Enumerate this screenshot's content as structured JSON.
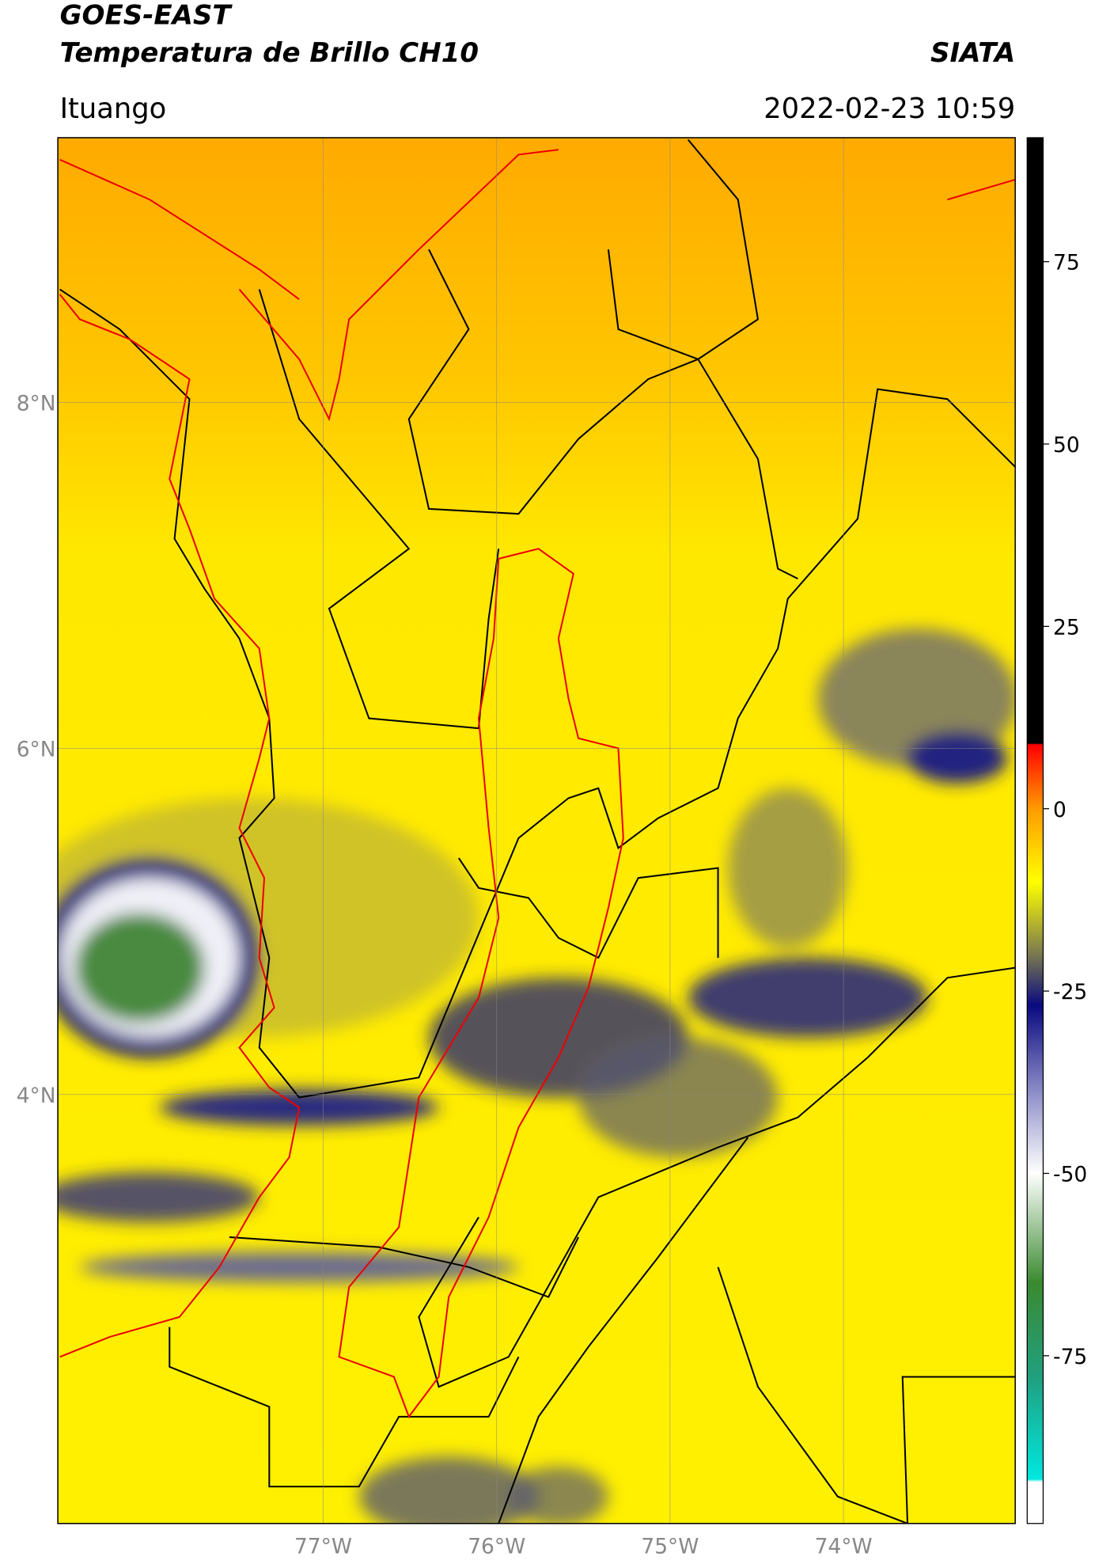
{
  "header": {
    "title": "GOES-EAST",
    "subtitle": "Temperatura de Brillo CH10",
    "source": "SIATA",
    "location": "Ituango",
    "datetime": "2022-02-23 10:59"
  },
  "map": {
    "lonlim": [
      -78.53,
      -73.01
    ],
    "latlim": [
      1.52,
      9.53
    ],
    "lonticks": [
      {
        "value": -77,
        "label": "77°W"
      },
      {
        "value": -76,
        "label": "76°W"
      },
      {
        "value": -75,
        "label": "75°W"
      },
      {
        "value": -74,
        "label": "74°W"
      }
    ],
    "latticks": [
      {
        "value": 8,
        "label": "8°N"
      },
      {
        "value": 6,
        "label": "6°N"
      },
      {
        "value": 4,
        "label": "4°N"
      }
    ]
  },
  "colorbar": {
    "lim": [
      -98,
      92
    ],
    "ticks": [
      75,
      50,
      25,
      0,
      -25,
      -50,
      -75
    ]
  }
}
